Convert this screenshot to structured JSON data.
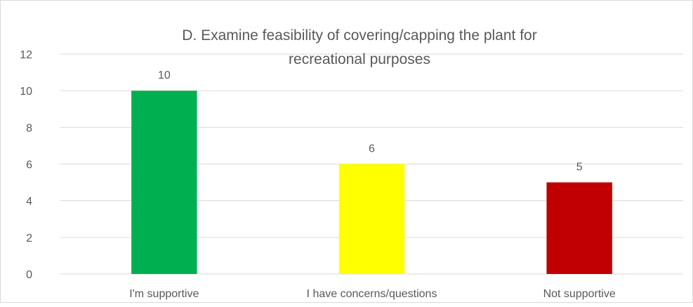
{
  "chart_data": {
    "type": "bar",
    "title_lines": [
      "D. Examine feasibility of covering/capping the plant for",
      "recreational purposes"
    ],
    "categories": [
      "I'm supportive",
      "I have concerns/questions",
      "Not supportive"
    ],
    "values": [
      10,
      6,
      5
    ],
    "data_labels": [
      "10",
      "6",
      "5"
    ],
    "colors": [
      "#00b050",
      "#ffff00",
      "#c00000"
    ],
    "ylim": [
      0,
      12
    ],
    "yticks": [
      "0",
      "2",
      "4",
      "6",
      "8",
      "10",
      "12"
    ],
    "xlabel": "",
    "ylabel": "",
    "grid": true,
    "legend": "none"
  }
}
